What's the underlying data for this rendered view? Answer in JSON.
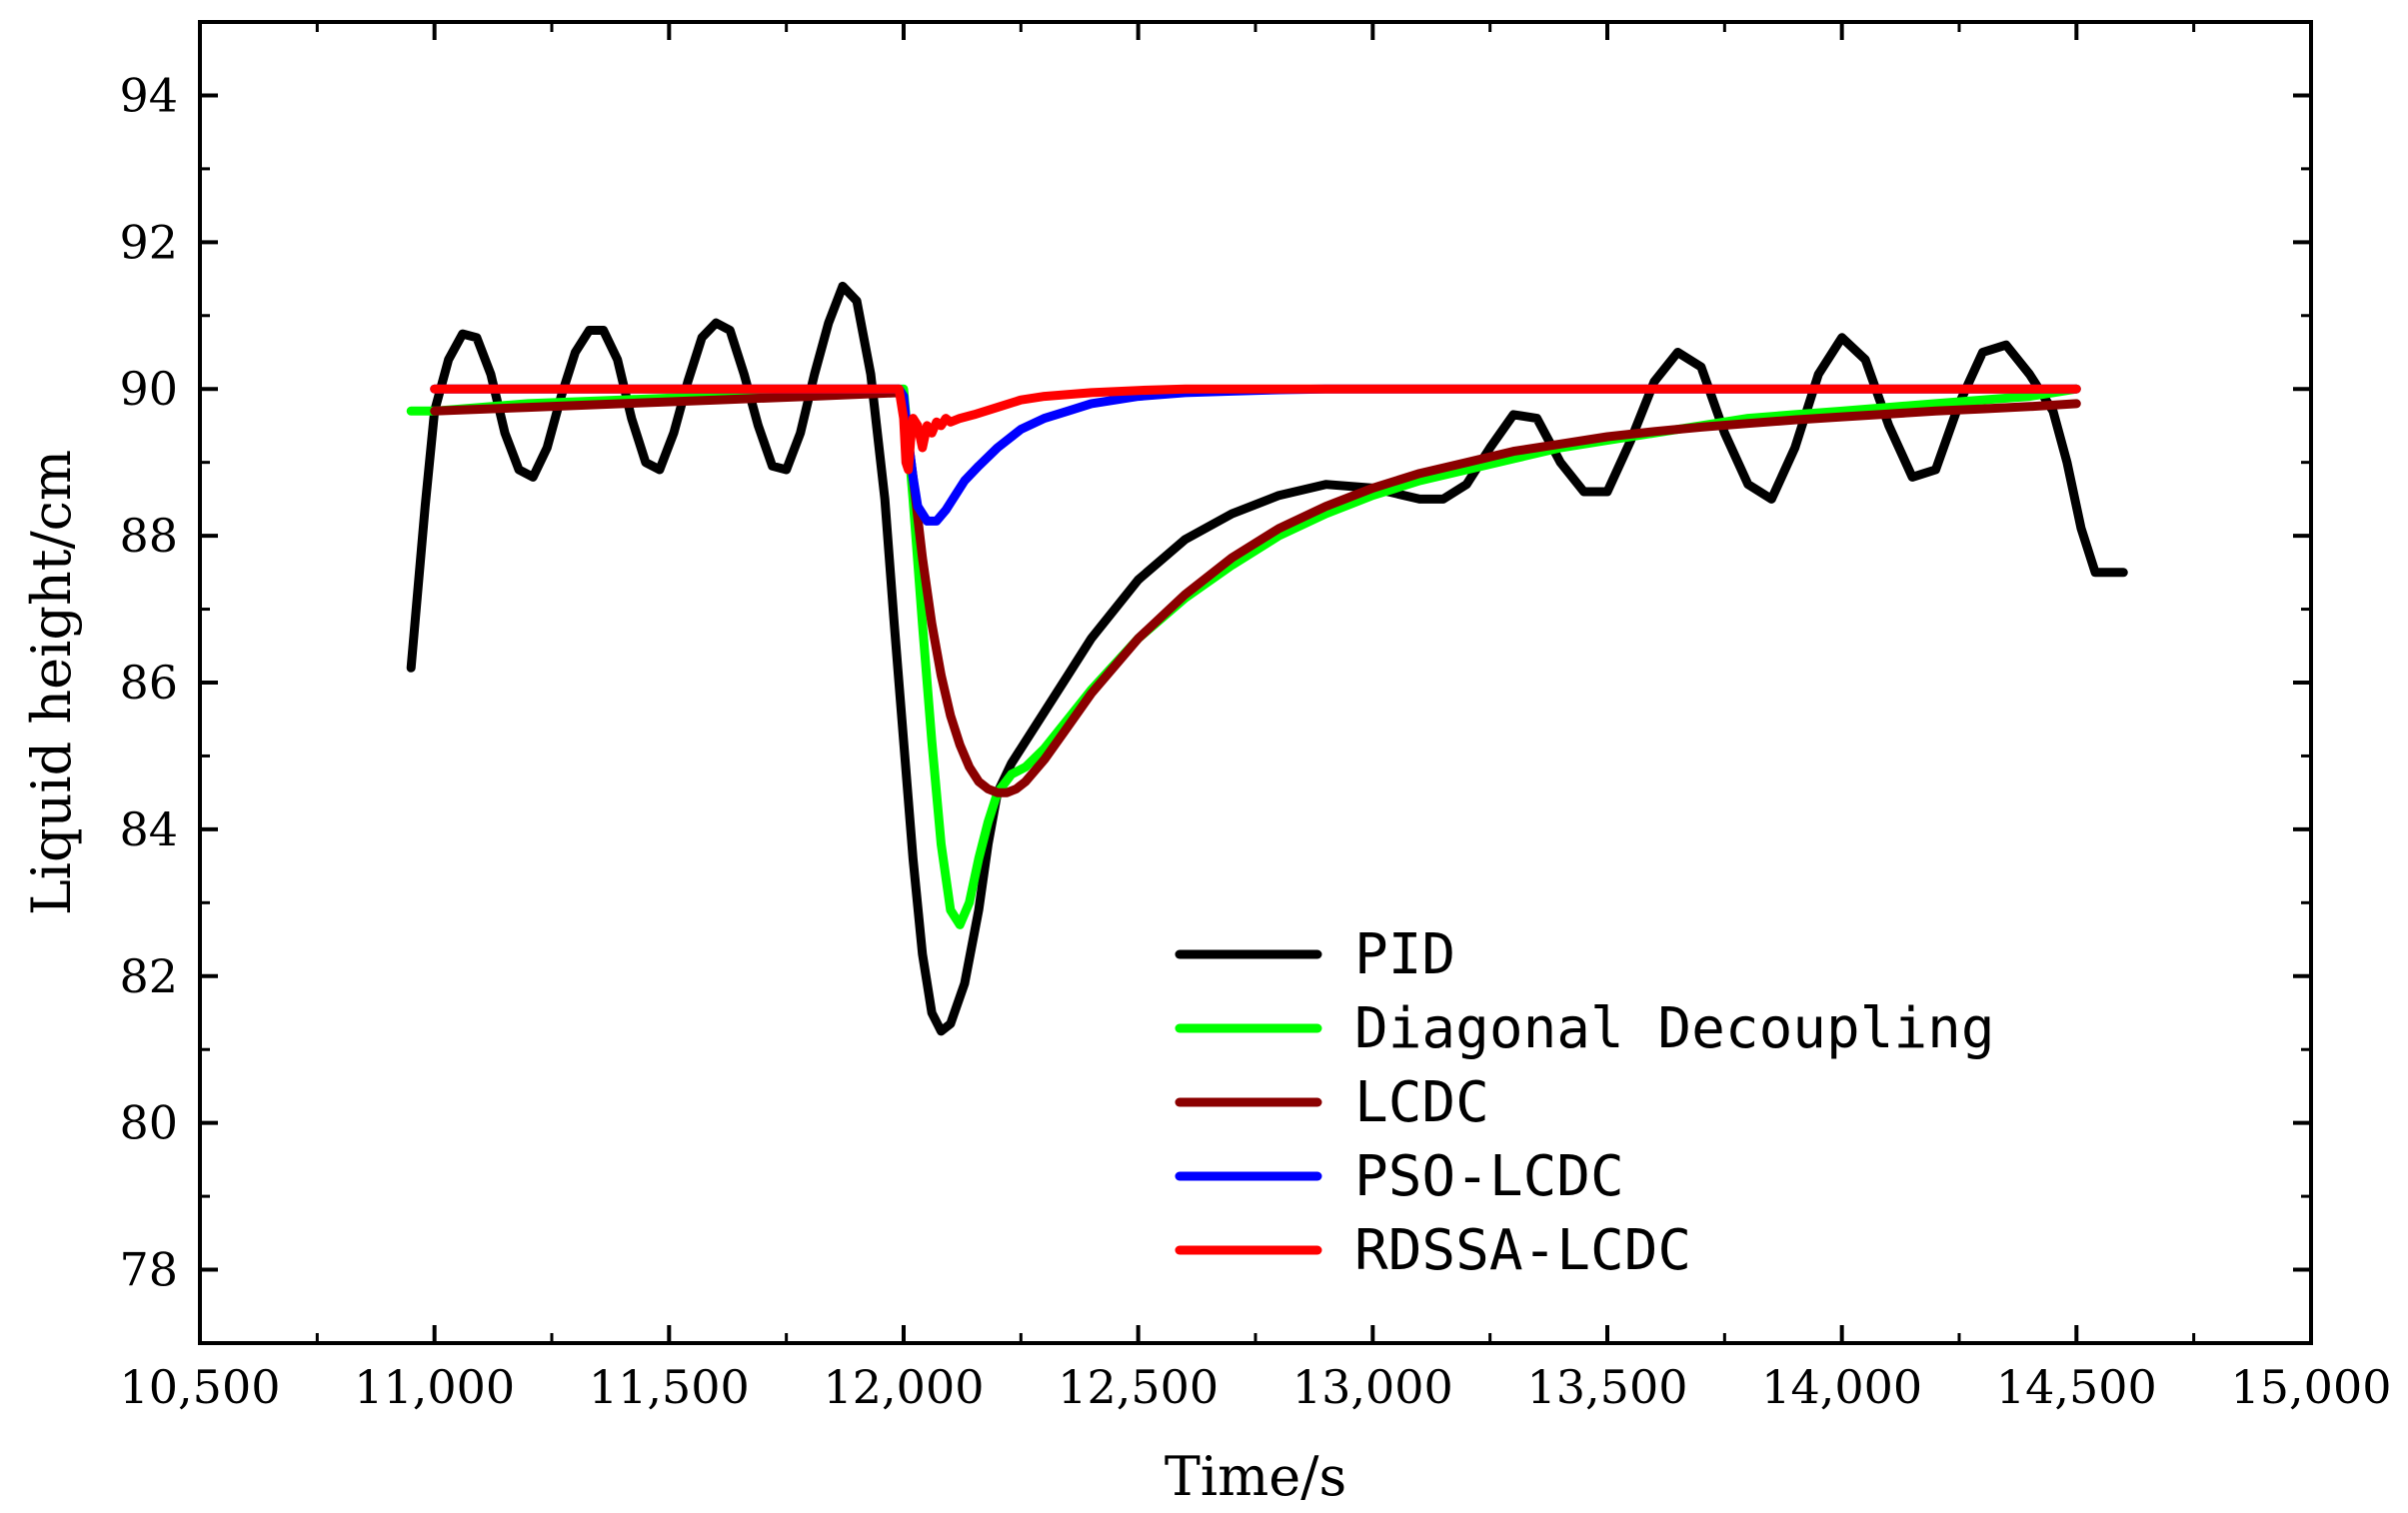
{
  "chart_data": {
    "type": "line",
    "title": "",
    "xlabel": "Time/s",
    "ylabel": "Liquid height/cm",
    "xlim": [
      10500,
      15000
    ],
    "ylim": [
      77,
      95
    ],
    "xticks": [
      10500,
      11000,
      11500,
      12000,
      12500,
      13000,
      13500,
      14000,
      14500,
      15000
    ],
    "xtick_labels": [
      "10,500",
      "11,000",
      "11,500",
      "12,000",
      "12,500",
      "13,000",
      "13,500",
      "14,000",
      "14,500",
      "15,000"
    ],
    "yticks": [
      78,
      80,
      82,
      84,
      86,
      88,
      90,
      92,
      94
    ],
    "ytick_labels": [
      "78",
      "80",
      "82",
      "84",
      "86",
      "88",
      "90",
      "92",
      "94"
    ],
    "grid": false,
    "legend_position": "bottom-right",
    "series": [
      {
        "name": "PID",
        "color": "#000000",
        "x": [
          10950,
          10980,
          11000,
          11030,
          11060,
          11090,
          11120,
          11150,
          11180,
          11210,
          11240,
          11270,
          11300,
          11330,
          11360,
          11390,
          11420,
          11450,
          11480,
          11510,
          11540,
          11570,
          11600,
          11630,
          11660,
          11690,
          11720,
          11750,
          11780,
          11810,
          11840,
          11870,
          11900,
          11930,
          11960,
          11980,
          12000,
          12020,
          12040,
          12060,
          12080,
          12100,
          12130,
          12160,
          12180,
          12200,
          12230,
          12260,
          12300,
          12350,
          12400,
          12450,
          12500,
          12600,
          12700,
          12800,
          12900,
          13000,
          13100,
          13150,
          13200,
          13250,
          13300,
          13350,
          13400,
          13450,
          13500,
          13550,
          13600,
          13650,
          13700,
          13750,
          13800,
          13850,
          13900,
          13950,
          14000,
          14050,
          14100,
          14150,
          14200,
          14250,
          14300,
          14350,
          14400,
          14450,
          14480,
          14510,
          14540,
          14570,
          14600
        ],
        "y": [
          86.2,
          88.4,
          89.7,
          90.4,
          90.75,
          90.7,
          90.2,
          89.4,
          88.9,
          88.8,
          89.2,
          89.9,
          90.5,
          90.8,
          90.8,
          90.4,
          89.6,
          89.0,
          88.9,
          89.4,
          90.1,
          90.7,
          90.9,
          90.8,
          90.2,
          89.5,
          88.95,
          88.9,
          89.4,
          90.2,
          90.9,
          91.4,
          91.2,
          90.2,
          88.5,
          86.8,
          85.2,
          83.6,
          82.3,
          81.5,
          81.25,
          81.35,
          81.9,
          82.9,
          83.8,
          84.5,
          84.9,
          85.2,
          85.6,
          86.1,
          86.6,
          87.0,
          87.4,
          87.95,
          88.3,
          88.55,
          88.7,
          88.65,
          88.5,
          88.5,
          88.7,
          89.2,
          89.65,
          89.6,
          89.0,
          88.6,
          88.6,
          89.3,
          90.1,
          90.5,
          90.3,
          89.4,
          88.7,
          88.5,
          89.2,
          90.2,
          90.7,
          90.4,
          89.5,
          88.8,
          88.9,
          89.8,
          90.5,
          90.6,
          90.2,
          89.7,
          89.0,
          88.1,
          87.5,
          87.5,
          87.5
        ]
      },
      {
        "name": "Diagonal Decoupling",
        "color": "#00FF00",
        "x": [
          10950,
          11000,
          11200,
          11400,
          11600,
          11800,
          12000,
          12020,
          12040,
          12060,
          12080,
          12100,
          12120,
          12140,
          12160,
          12180,
          12200,
          12230,
          12260,
          12300,
          12350,
          12400,
          12500,
          12600,
          12700,
          12800,
          12900,
          13000,
          13100,
          13200,
          13300,
          13400,
          13500,
          13600,
          13700,
          13800,
          13900,
          14000,
          14100,
          14200,
          14300,
          14400,
          14450,
          14500
        ],
        "y": [
          89.7,
          89.7,
          89.8,
          89.85,
          89.9,
          89.95,
          90.0,
          88.5,
          86.8,
          85.2,
          83.8,
          82.9,
          82.7,
          83.0,
          83.6,
          84.1,
          84.5,
          84.75,
          84.85,
          85.1,
          85.5,
          85.9,
          86.6,
          87.15,
          87.6,
          88.0,
          88.3,
          88.55,
          88.75,
          88.9,
          89.05,
          89.2,
          89.3,
          89.4,
          89.5,
          89.6,
          89.65,
          89.7,
          89.75,
          89.8,
          89.85,
          89.9,
          89.95,
          90.0
        ]
      },
      {
        "name": "LCDC",
        "color": "#8B0000",
        "x": [
          11000,
          11200,
          11400,
          11600,
          11800,
          11990,
          12000,
          12020,
          12040,
          12060,
          12080,
          12100,
          12120,
          12140,
          12160,
          12180,
          12200,
          12220,
          12240,
          12260,
          12300,
          12350,
          12400,
          12500,
          12600,
          12700,
          12800,
          12900,
          13000,
          13100,
          13200,
          13300,
          13400,
          13500,
          13600,
          13700,
          13800,
          13900,
          14000,
          14100,
          14200,
          14300,
          14400,
          14500
        ],
        "y": [
          89.7,
          89.75,
          89.8,
          89.85,
          89.9,
          89.95,
          89.8,
          88.8,
          87.7,
          86.8,
          86.1,
          85.55,
          85.15,
          84.85,
          84.65,
          84.55,
          84.5,
          84.5,
          84.55,
          84.65,
          84.95,
          85.4,
          85.85,
          86.6,
          87.2,
          87.7,
          88.1,
          88.4,
          88.65,
          88.85,
          89.0,
          89.15,
          89.25,
          89.35,
          89.42,
          89.48,
          89.53,
          89.58,
          89.62,
          89.66,
          89.7,
          89.73,
          89.76,
          89.8
        ]
      },
      {
        "name": "PSO-LCDC",
        "color": "#0000FF",
        "x": [
          11000,
          11990,
          12000,
          12010,
          12020,
          12030,
          12050,
          12070,
          12090,
          12110,
          12130,
          12160,
          12200,
          12250,
          12300,
          12350,
          12400,
          12500,
          12600,
          12700,
          12800,
          12900,
          13000,
          13500,
          14000,
          14500
        ],
        "y": [
          90.0,
          90.0,
          89.9,
          89.3,
          88.8,
          88.4,
          88.2,
          88.2,
          88.35,
          88.55,
          88.75,
          88.95,
          89.2,
          89.45,
          89.6,
          89.7,
          89.8,
          89.9,
          89.95,
          89.97,
          89.99,
          90.0,
          90.0,
          90.0,
          90.0,
          90.0
        ]
      },
      {
        "name": "RDSSA-LCDC",
        "color": "#FF0000",
        "x": [
          11000,
          11500,
          11990,
          12000,
          12005,
          12010,
          12015,
          12020,
          12030,
          12040,
          12050,
          12060,
          12070,
          12080,
          12090,
          12100,
          12120,
          12150,
          12200,
          12250,
          12300,
          12400,
          12500,
          12600,
          12800,
          13000,
          13500,
          14000,
          14500
        ],
        "y": [
          90.0,
          90.0,
          90.0,
          89.6,
          89.0,
          88.9,
          89.3,
          89.6,
          89.5,
          89.2,
          89.5,
          89.4,
          89.55,
          89.5,
          89.6,
          89.55,
          89.6,
          89.65,
          89.75,
          89.85,
          89.9,
          89.95,
          89.98,
          90.0,
          90.0,
          90.0,
          90.0,
          90.0,
          90.0
        ]
      }
    ]
  }
}
